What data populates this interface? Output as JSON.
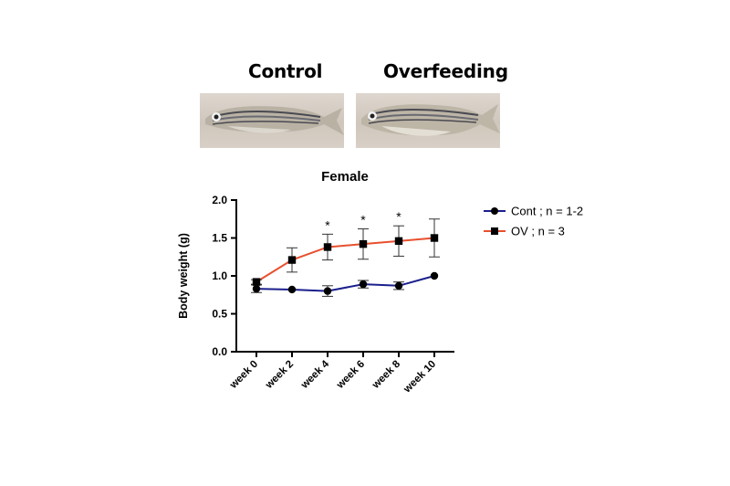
{
  "photos": {
    "control_title": "Control",
    "overfeeding_title": "Overfeeding"
  },
  "chart_data": {
    "type": "line",
    "title": "Female",
    "xlabel": "",
    "ylabel": "Body weight (g)",
    "categories": [
      "week 0",
      "week 2",
      "week 4",
      "week 6",
      "week 8",
      "week 10"
    ],
    "ylim": [
      0.0,
      2.0
    ],
    "yticks": [
      "0.0",
      "0.5",
      "1.0",
      "1.5",
      "2.0"
    ],
    "grid": false,
    "legend_position": "right",
    "series": [
      {
        "name": "Cont ; n = 1-2",
        "marker": "circle",
        "color": "#1a1f8c",
        "values": [
          0.83,
          0.82,
          0.8,
          0.89,
          0.87,
          1.0
        ],
        "error": [
          0.05,
          0.0,
          0.07,
          0.05,
          0.05,
          0.0
        ]
      },
      {
        "name": "OV ; n = 3",
        "marker": "square",
        "color": "#e8502e",
        "values": [
          0.92,
          1.21,
          1.38,
          1.42,
          1.46,
          1.5
        ],
        "error": [
          0.03,
          0.16,
          0.17,
          0.2,
          0.2,
          0.25
        ]
      }
    ],
    "annotations": [
      {
        "category": "week 4",
        "text": "*"
      },
      {
        "category": "week 6",
        "text": "*"
      },
      {
        "category": "week 8",
        "text": "*"
      }
    ]
  }
}
